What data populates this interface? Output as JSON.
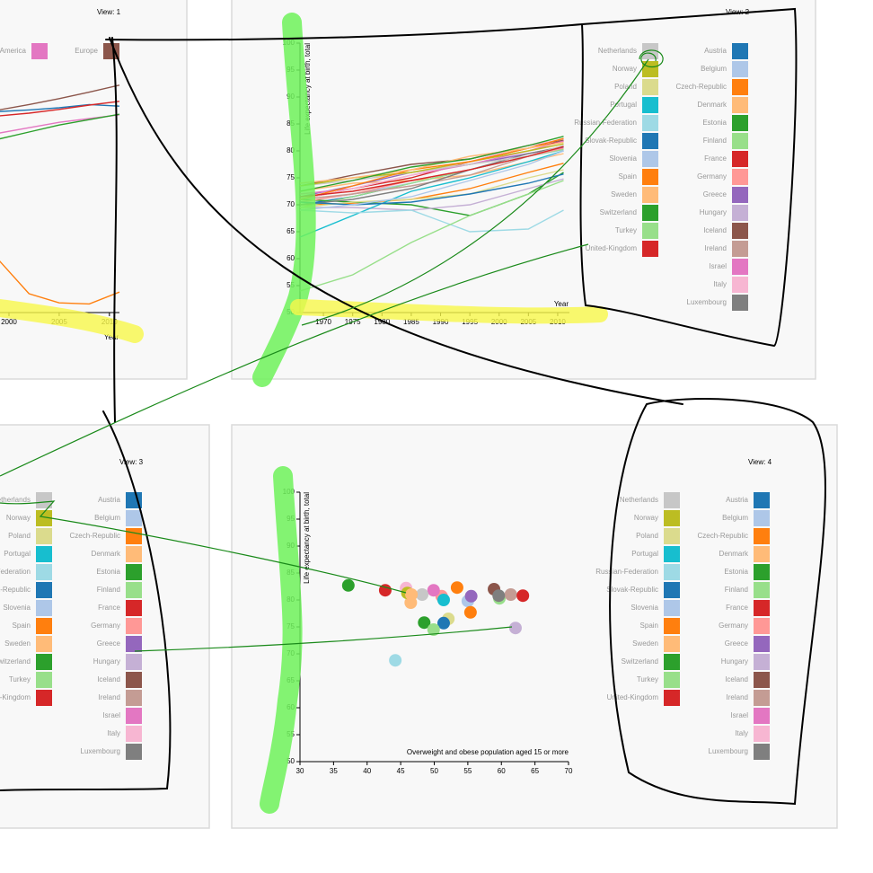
{
  "chart_data": [
    {
      "type": "line",
      "title": "View: 1",
      "x_label": "Year",
      "x": [
        1999,
        2002,
        2005,
        2008,
        2011
      ],
      "xlim": [
        1999,
        2011
      ],
      "xticks": [
        2000,
        2005,
        2010
      ],
      "ylim": [
        50,
        100
      ],
      "series": [
        {
          "name": "America",
          "color": "#e377c2",
          "values": [
            83.3,
            84.3,
            85.3,
            86,
            86.7
          ]
        },
        {
          "name": "Europe",
          "color": "#8c564b",
          "values": [
            87.6,
            88.6,
            89.7,
            90.9,
            92.2
          ]
        },
        {
          "color": "#1f77b4",
          "values": [
            87.3,
            87.6,
            88,
            88.6,
            88.3
          ]
        },
        {
          "color": "#d62728",
          "values": [
            86.5,
            87,
            87.7,
            88.5,
            89.2
          ]
        },
        {
          "color": "#2ca02c",
          "values": [
            82.2,
            83.5,
            84.8,
            85.8,
            86.8
          ]
        },
        {
          "color": "#ff7f0e",
          "values": [
            59.7,
            53.5,
            51.8,
            51.6,
            53.8
          ]
        }
      ]
    },
    {
      "type": "line",
      "title": "View: 2",
      "x_label": "Year",
      "y_label": "Life expectancy at birth, total",
      "x": [
        1966,
        1975,
        1985,
        1995,
        2005,
        2011
      ],
      "xlim": [
        1966,
        2012
      ],
      "xticks": [
        1970,
        1975,
        1980,
        1985,
        1990,
        1995,
        2000,
        2005,
        2010
      ],
      "ylim": [
        50,
        100
      ],
      "yticks": [
        50,
        55,
        60,
        65,
        70,
        75,
        80,
        85,
        90,
        95,
        100
      ],
      "series": [
        {
          "name": "Austria",
          "color": "#1f77b4",
          "values": [
            70,
            71.5,
            74,
            76.5,
            79,
            80.7
          ]
        },
        {
          "name": "Belgium",
          "color": "#aec7e8",
          "values": [
            70.5,
            72,
            74,
            76.5,
            79,
            80.2
          ]
        },
        {
          "name": "Czech-Republic",
          "color": "#ff7f0e",
          "values": [
            70,
            70.3,
            71,
            73,
            76,
            77.7
          ]
        },
        {
          "name": "Denmark",
          "color": "#ffbb78",
          "values": [
            72.5,
            74,
            74.5,
            75.5,
            78,
            79.5
          ]
        },
        {
          "name": "Estonia",
          "color": "#2ca02c",
          "values": [
            71,
            70.5,
            70,
            68,
            72,
            76
          ]
        },
        {
          "name": "Finland",
          "color": "#98df8a",
          "values": [
            69.5,
            71.5,
            74,
            76.5,
            79,
            80.3
          ]
        },
        {
          "name": "France",
          "color": "#d62728",
          "values": [
            71,
            73,
            75,
            78,
            80.5,
            81.8
          ]
        },
        {
          "name": "Germany",
          "color": "#ff9896",
          "values": [
            70.5,
            72,
            74.5,
            76.5,
            79,
            80.5
          ]
        },
        {
          "name": "Greece",
          "color": "#9467bd",
          "values": [
            71.5,
            73.5,
            76,
            77.5,
            79.5,
            80.7
          ]
        },
        {
          "name": "Hungary",
          "color": "#c5b0d5",
          "values": [
            69.5,
            69.5,
            69,
            70,
            73,
            74.8
          ]
        },
        {
          "name": "Iceland",
          "color": "#8c564b",
          "values": [
            73.5,
            75.5,
            77.5,
            78.5,
            81,
            82
          ]
        },
        {
          "name": "Ireland",
          "color": "#c49c94",
          "values": [
            71,
            72,
            73.5,
            75.5,
            79,
            81
          ]
        },
        {
          "name": "Israel",
          "color": "#e377c2",
          "values": [
            72,
            73,
            75.5,
            77.5,
            80,
            81.8
          ]
        },
        {
          "name": "Italy",
          "color": "#f7b6d2",
          "values": [
            71,
            73,
            75.5,
            78,
            81,
            82.2
          ]
        },
        {
          "name": "Luxembourg",
          "color": "#7f7f7f",
          "values": [
            70,
            71,
            73,
            76.5,
            79.5,
            80.8
          ]
        },
        {
          "name": "Netherlands",
          "color": "#c7c7c7",
          "values": [
            73.5,
            74.5,
            76,
            77.5,
            79,
            81
          ]
        },
        {
          "name": "Norway",
          "color": "#bcbd22",
          "values": [
            73.5,
            75,
            76,
            78,
            80,
            81.3
          ]
        },
        {
          "name": "Poland",
          "color": "#dbdb8d",
          "values": [
            69.5,
            70.5,
            71,
            72,
            75,
            76.5
          ]
        },
        {
          "name": "Portugal",
          "color": "#17becf",
          "values": [
            64,
            68,
            72.5,
            75,
            78,
            80
          ]
        },
        {
          "name": "Russian-Federation",
          "color": "#9edae5",
          "values": [
            69,
            68.5,
            69,
            65,
            65.5,
            69
          ]
        },
        {
          "name": "Slovak-Republic",
          "color": "#1f77b4",
          "values": [
            70.5,
            70,
            70.5,
            72,
            74,
            75.7
          ]
        },
        {
          "name": "Slovenia",
          "color": "#aec7e8",
          "values": [
            69,
            70,
            71.5,
            74.5,
            77.5,
            80
          ]
        },
        {
          "name": "Spain",
          "color": "#ff7f0e",
          "values": [
            71,
            73.5,
            76.5,
            78,
            80.5,
            82.3
          ]
        },
        {
          "name": "Sweden",
          "color": "#ffbb78",
          "values": [
            74,
            75,
            76.5,
            79,
            80.5,
            81.6
          ]
        },
        {
          "name": "Switzerland",
          "color": "#2ca02c",
          "values": [
            72.5,
            74.5,
            77,
            78.5,
            81,
            82.7
          ]
        },
        {
          "name": "Turkey",
          "color": "#98df8a",
          "values": [
            54,
            57,
            63,
            68,
            72,
            74.5
          ]
        },
        {
          "name": "United-Kingdom",
          "color": "#d62728",
          "values": [
            71.5,
            72.5,
            74.5,
            76.5,
            79,
            80.8
          ]
        }
      ]
    },
    {
      "type": "legend",
      "title": "View: 3",
      "series": [
        {
          "name": "Austria",
          "color": "#1f77b4"
        },
        {
          "name": "Belgium",
          "color": "#aec7e8"
        },
        {
          "name": "Czech-Republic",
          "color": "#ff7f0e"
        },
        {
          "name": "Denmark",
          "color": "#ffbb78"
        },
        {
          "name": "Estonia",
          "color": "#2ca02c"
        },
        {
          "name": "Finland",
          "color": "#98df8a"
        },
        {
          "name": "France",
          "color": "#d62728"
        },
        {
          "name": "Germany",
          "color": "#ff9896"
        },
        {
          "name": "Greece",
          "color": "#9467bd"
        },
        {
          "name": "Hungary",
          "color": "#c5b0d5"
        },
        {
          "name": "Iceland",
          "color": "#8c564b"
        },
        {
          "name": "Ireland",
          "color": "#c49c94"
        },
        {
          "name": "Israel",
          "color": "#e377c2"
        },
        {
          "name": "Italy",
          "color": "#f7b6d2"
        },
        {
          "name": "Luxembourg",
          "color": "#7f7f7f"
        },
        {
          "name": "Netherlands",
          "color": "#c7c7c7"
        },
        {
          "name": "Norway",
          "color": "#bcbd22"
        },
        {
          "name": "Poland",
          "color": "#dbdb8d"
        },
        {
          "name": "Portugal",
          "color": "#17becf"
        },
        {
          "name": "Russian-Federation",
          "color": "#9edae5"
        },
        {
          "name": "Slovak-Republic",
          "color": "#1f77b4"
        },
        {
          "name": "Slovenia",
          "color": "#aec7e8"
        },
        {
          "name": "Spain",
          "color": "#ff7f0e"
        },
        {
          "name": "Sweden",
          "color": "#ffbb78"
        },
        {
          "name": "Switzerland",
          "color": "#2ca02c"
        },
        {
          "name": "Turkey",
          "color": "#98df8a"
        },
        {
          "name": "United-Kingdom",
          "color": "#d62728"
        }
      ]
    },
    {
      "type": "scatter",
      "title": "View: 4",
      "x_label": "Overweight and obese population aged 15 or more",
      "y_label": "Life expectancy at birth, total",
      "xlim": [
        30,
        70
      ],
      "xticks": [
        30,
        35,
        40,
        45,
        50,
        55,
        60,
        65,
        70
      ],
      "ylim": [
        50,
        100
      ],
      "yticks": [
        50,
        55,
        60,
        65,
        70,
        75,
        80,
        85,
        90,
        95,
        100
      ],
      "series": [
        {
          "name": "Austria",
          "color": "#1f77b4",
          "x": [],
          "values": []
        },
        {
          "name": "Belgium",
          "color": "#aec7e8",
          "x": [
            55
          ],
          "values": [
            79.8
          ]
        },
        {
          "name": "Czech-Republic",
          "color": "#ff7f0e",
          "x": [
            55.4
          ],
          "values": [
            77.7
          ]
        },
        {
          "name": "Denmark",
          "color": "#ffbb78",
          "x": [
            46.5
          ],
          "values": [
            79.5
          ]
        },
        {
          "name": "Estonia",
          "color": "#2ca02c",
          "x": [
            48.5
          ],
          "values": [
            75.8
          ]
        },
        {
          "name": "Finland",
          "color": "#98df8a",
          "x": [
            59.7
          ],
          "values": [
            80.3
          ]
        },
        {
          "name": "France",
          "color": "#d62728",
          "x": [
            42.7
          ],
          "values": [
            81.8
          ]
        },
        {
          "name": "Germany",
          "color": "#ff9896",
          "x": [
            51.1
          ],
          "values": [
            80.7
          ]
        },
        {
          "name": "Greece",
          "color": "#9467bd",
          "x": [
            55.5
          ],
          "values": [
            80.7
          ]
        },
        {
          "name": "Hungary",
          "color": "#c5b0d5",
          "x": [
            62.1
          ],
          "values": [
            74.8
          ]
        },
        {
          "name": "Iceland",
          "color": "#8c564b",
          "x": [
            58.9
          ],
          "values": [
            82
          ]
        },
        {
          "name": "Ireland",
          "color": "#c49c94",
          "x": [
            61.4
          ],
          "values": [
            81
          ]
        },
        {
          "name": "Israel",
          "color": "#e377c2",
          "x": [
            49.9
          ],
          "values": [
            81.8
          ]
        },
        {
          "name": "Italy",
          "color": "#f7b6d2",
          "x": [
            45.8
          ],
          "values": [
            82.2
          ]
        },
        {
          "name": "Luxembourg",
          "color": "#7f7f7f",
          "x": [
            59.6
          ],
          "values": [
            80.8
          ]
        },
        {
          "name": "Netherlands",
          "color": "#c7c7c7",
          "x": [
            48.2
          ],
          "values": [
            81
          ]
        },
        {
          "name": "Norway",
          "color": "#bcbd22",
          "x": [
            46
          ],
          "values": [
            81.3
          ]
        },
        {
          "name": "Poland",
          "color": "#dbdb8d",
          "x": [
            52.1
          ],
          "values": [
            76.5
          ]
        },
        {
          "name": "Portugal",
          "color": "#17becf",
          "x": [
            51.4
          ],
          "values": [
            80
          ]
        },
        {
          "name": "Russian-Federation",
          "color": "#9edae5",
          "x": [
            44.2
          ],
          "values": [
            68.8
          ]
        },
        {
          "name": "Slovak-Republic",
          "color": "#1f77b4",
          "x": [
            51.4
          ],
          "values": [
            75.7
          ]
        },
        {
          "name": "Slovenia",
          "color": "#aec7e8",
          "x": [],
          "values": []
        },
        {
          "name": "Spain",
          "color": "#ff7f0e",
          "x": [
            53.4
          ],
          "values": [
            82.3
          ]
        },
        {
          "name": "Sweden",
          "color": "#ffbb78",
          "x": [
            46.6
          ],
          "values": [
            81
          ]
        },
        {
          "name": "Switzerland",
          "color": "#2ca02c",
          "x": [
            37.2
          ],
          "values": [
            82.7
          ]
        },
        {
          "name": "Turkey",
          "color": "#98df8a",
          "x": [
            49.9
          ],
          "values": [
            74.5
          ]
        },
        {
          "name": "United-Kingdom",
          "color": "#d62728",
          "x": [
            63.2
          ],
          "values": [
            80.8
          ]
        }
      ]
    }
  ]
}
